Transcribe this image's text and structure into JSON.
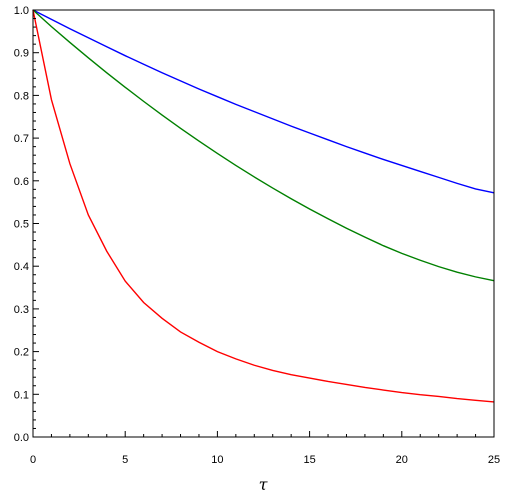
{
  "chart_data": {
    "type": "line",
    "title": "",
    "xlabel": "τ",
    "ylabel": "",
    "xlim": [
      0,
      25
    ],
    "ylim": [
      0,
      1.0
    ],
    "x_ticks": [
      0,
      5,
      10,
      15,
      20,
      25
    ],
    "y_ticks": [
      0.0,
      0.1,
      0.2,
      0.3,
      0.4,
      0.5,
      0.6,
      0.7,
      0.8,
      0.9,
      1.0
    ],
    "x_tick_labels": [
      "0",
      "5",
      "10",
      "15",
      "20",
      "25"
    ],
    "y_tick_labels": [
      "0.0",
      "0.1",
      "0.2",
      "0.3",
      "0.4",
      "0.5",
      "0.6",
      "0.7",
      "0.8",
      "0.9",
      "1.0"
    ],
    "grid": false,
    "legend": "none",
    "x": [
      0,
      1,
      2,
      3,
      4,
      5,
      6,
      7,
      8,
      9,
      10,
      11,
      12,
      13,
      14,
      15,
      16,
      17,
      18,
      19,
      20,
      21,
      22,
      23,
      24,
      25
    ],
    "series": [
      {
        "color": "#0000ff",
        "values": [
          1.0,
          0.978,
          0.956,
          0.935,
          0.914,
          0.893,
          0.873,
          0.853,
          0.834,
          0.815,
          0.797,
          0.779,
          0.762,
          0.745,
          0.728,
          0.712,
          0.696,
          0.68,
          0.665,
          0.65,
          0.636,
          0.622,
          0.608,
          0.594,
          0.581,
          0.572
        ]
      },
      {
        "color": "#008000",
        "values": [
          1.0,
          0.961,
          0.924,
          0.888,
          0.853,
          0.819,
          0.786,
          0.754,
          0.723,
          0.693,
          0.664,
          0.636,
          0.609,
          0.583,
          0.558,
          0.534,
          0.511,
          0.489,
          0.468,
          0.448,
          0.43,
          0.414,
          0.399,
          0.386,
          0.375,
          0.366
        ]
      },
      {
        "color": "#ff0000",
        "values": [
          1.0,
          0.79,
          0.64,
          0.52,
          0.435,
          0.365,
          0.315,
          0.278,
          0.246,
          0.222,
          0.2,
          0.183,
          0.168,
          0.156,
          0.146,
          0.138,
          0.13,
          0.123,
          0.116,
          0.11,
          0.104,
          0.099,
          0.095,
          0.09,
          0.086,
          0.082
        ]
      }
    ]
  }
}
